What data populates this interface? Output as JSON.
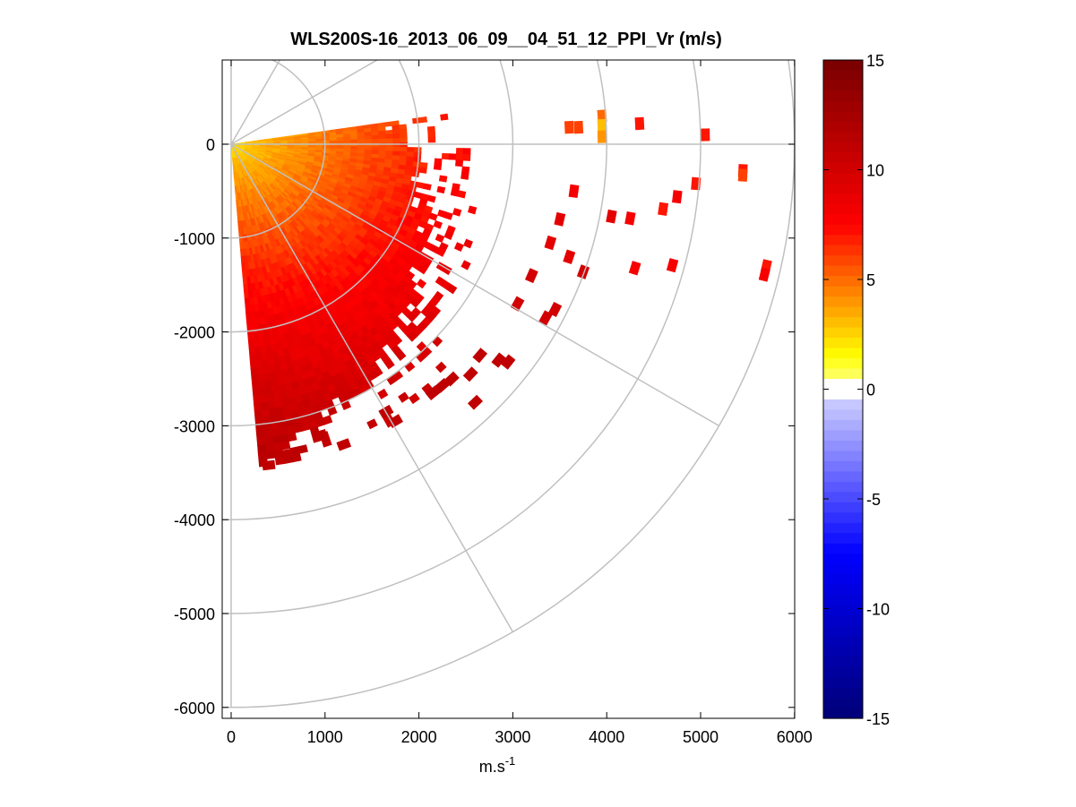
{
  "chart_data": {
    "type": "heatmap",
    "subtype": "polar-ppi-scan",
    "title": "WLS200S-16_2013_06_09__04_51_12_PPI_Vr (m/s)",
    "xlabel": "m.s",
    "xlabel_superscript": "-1",
    "ylabel": "",
    "xlim": [
      -100,
      6000
    ],
    "ylim": [
      -6100,
      900
    ],
    "x_ticks": [
      0,
      1000,
      2000,
      3000,
      4000,
      5000,
      6000
    ],
    "x_tick_labels": [
      "0",
      "1000",
      "2000",
      "3000",
      "4000",
      "5000",
      "6000"
    ],
    "y_ticks": [
      0,
      -1000,
      -2000,
      -3000,
      -4000,
      -5000,
      -6000
    ],
    "y_tick_labels": [
      "0",
      "-1000",
      "-2000",
      "-3000",
      "-4000",
      "-5000",
      "-6000"
    ],
    "polar_grid": {
      "range_rings_m": [
        1000,
        2000,
        3000,
        4000,
        5000,
        6000
      ],
      "spokes_deg": [
        0,
        -30,
        -60,
        60,
        30,
        90,
        -90
      ]
    },
    "scan": {
      "azimuth_start_deg": 8,
      "azimuth_end_deg": -85,
      "max_range_m": 3450,
      "velocity_near_m_s": 2,
      "velocity_far_m_s": 10.5,
      "near_range_color": "#ffff00",
      "mid_range_color": "#ff8000",
      "far_range_color": "#e00000"
    },
    "scattered_gates": [
      {
        "x": 3600,
        "y": 180,
        "v": 6
      },
      {
        "x": 3700,
        "y": 180,
        "v": 6
      },
      {
        "x": 3950,
        "y": 300,
        "v": 5
      },
      {
        "x": 3950,
        "y": 200,
        "v": 3
      },
      {
        "x": 3950,
        "y": 80,
        "v": 4
      },
      {
        "x": 4350,
        "y": 220,
        "v": 7
      },
      {
        "x": 5050,
        "y": 100,
        "v": 7
      },
      {
        "x": 5450,
        "y": -280,
        "v": 7
      },
      {
        "x": 5450,
        "y": -330,
        "v": 6
      },
      {
        "x": 4950,
        "y": -420,
        "v": 7
      },
      {
        "x": 4750,
        "y": -560,
        "v": 8
      },
      {
        "x": 4600,
        "y": -690,
        "v": 7
      },
      {
        "x": 4050,
        "y": -770,
        "v": 9
      },
      {
        "x": 4250,
        "y": -790,
        "v": 8
      },
      {
        "x": 4300,
        "y": -1320,
        "v": 8
      },
      {
        "x": 4700,
        "y": -1290,
        "v": 8
      },
      {
        "x": 5700,
        "y": -1300,
        "v": 7
      },
      {
        "x": 5680,
        "y": -1390,
        "v": 8
      },
      {
        "x": 3750,
        "y": -1360,
        "v": 10
      },
      {
        "x": 3350,
        "y": -1850,
        "v": 10
      },
      {
        "x": 3450,
        "y": -1760,
        "v": 10
      },
      {
        "x": 2950,
        "y": -2320,
        "v": 11
      },
      {
        "x": 2850,
        "y": -2300,
        "v": 11
      },
      {
        "x": 2650,
        "y": -2250,
        "v": 11
      },
      {
        "x": 2550,
        "y": -2450,
        "v": 11
      },
      {
        "x": 2250,
        "y": -2570,
        "v": 11
      },
      {
        "x": 2350,
        "y": -2500,
        "v": 11
      },
      {
        "x": 2600,
        "y": -2750,
        "v": 11
      },
      {
        "x": 2150,
        "y": -2650,
        "v": 11
      },
      {
        "x": 1750,
        "y": -2950,
        "v": 11
      },
      {
        "x": 1650,
        "y": -2850,
        "v": 11
      },
      {
        "x": 1200,
        "y": -3200,
        "v": 11
      },
      {
        "x": 950,
        "y": -3100,
        "v": 11
      },
      {
        "x": 600,
        "y": -3300,
        "v": 11
      },
      {
        "x": 400,
        "y": -3420,
        "v": 11
      },
      {
        "x": 3050,
        "y": -1700,
        "v": 10
      },
      {
        "x": 3200,
        "y": -1400,
        "v": 10
      },
      {
        "x": 3400,
        "y": -1050,
        "v": 9
      },
      {
        "x": 3600,
        "y": -1200,
        "v": 9
      },
      {
        "x": 3650,
        "y": -500,
        "v": 8
      },
      {
        "x": 3500,
        "y": -800,
        "v": 9
      }
    ],
    "colorbar": {
      "min": -15,
      "max": 15,
      "ticks": [
        15,
        10,
        5,
        0,
        -5,
        -10,
        -15
      ],
      "tick_labels": [
        "15",
        "10",
        "5",
        "0",
        "-5",
        "-10",
        "-15"
      ],
      "gap_range": [
        -0.6,
        0.6
      ]
    }
  }
}
